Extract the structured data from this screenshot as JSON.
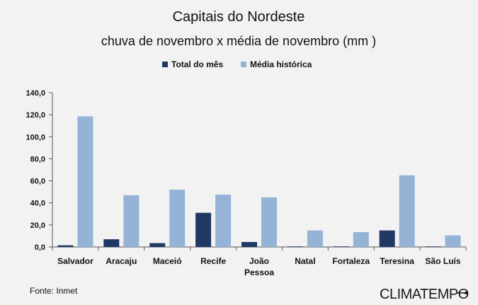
{
  "chart_data": {
    "type": "bar",
    "title": "Capitais do Nordeste",
    "subtitle": "chuva de novembro x média de novembro (mm )",
    "categories": [
      [
        "Salvador"
      ],
      [
        "Aracaju"
      ],
      [
        "Maceió"
      ],
      [
        "Recife"
      ],
      [
        "João",
        "Pessoa"
      ],
      [
        "Natal"
      ],
      [
        "Fortaleza"
      ],
      [
        "Teresina"
      ],
      [
        "São Luís"
      ]
    ],
    "series": [
      {
        "name": "Total do mês",
        "color": "#1f3864",
        "values": [
          1.5,
          7.0,
          3.5,
          31.0,
          4.5,
          0.5,
          0.5,
          15.0,
          0.5
        ]
      },
      {
        "name": "Média histórica",
        "color": "#95b3d7",
        "values": [
          118.5,
          47.0,
          52.0,
          47.5,
          45.0,
          15.0,
          13.5,
          65.0,
          10.5
        ]
      }
    ],
    "yticks": [
      "0,0",
      "20,0",
      "40,0",
      "60,0",
      "80,0",
      "100,0",
      "120,0",
      "140,0"
    ],
    "ylim": [
      0,
      140
    ],
    "legend_position": "top",
    "grid": false
  },
  "footer": {
    "source": "Fonte: Inmet",
    "brand": "CLIMATEMPO"
  }
}
